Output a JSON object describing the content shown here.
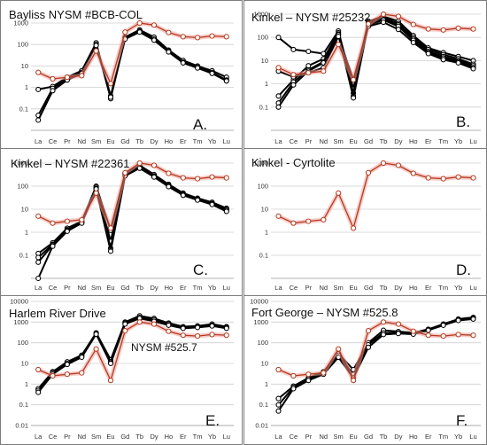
{
  "figure": {
    "colors": {
      "black_series": "#000000",
      "red_series": "#b33a1e",
      "red_glow": "#f2a09a",
      "gold_glow": "#f0c070",
      "grid": "#cfcfcf",
      "frame": "#7d7d7d"
    }
  },
  "chart_data": [
    {
      "type": "line",
      "title": "Bayliss NYSM #BCB-COL",
      "subtitle": "",
      "panel_label": "A.",
      "x": [
        "La",
        "Ce",
        "Pr",
        "Nd",
        "Sm",
        "Eu",
        "Gd",
        "Tb",
        "Dy",
        "Ho",
        "Er",
        "Tm",
        "Yb",
        "Lu"
      ],
      "y_ticks": [
        "1000",
        "100",
        "10",
        "1",
        "0.1"
      ],
      "y_scale": "log",
      "ylim": [
        0.01,
        1000
      ],
      "grid": true,
      "series": [
        {
          "color": "black",
          "values": [
            0.8,
            1.1,
            3,
            6,
            120,
            0.3,
            220,
            480,
            220,
            55,
            18,
            10,
            6,
            3
          ]
        },
        {
          "color": "black",
          "values": [
            0.05,
            0.9,
            2.5,
            5,
            100,
            0.4,
            200,
            420,
            180,
            50,
            15,
            9,
            5,
            2.2
          ]
        },
        {
          "color": "black",
          "values": [
            0.03,
            0.7,
            2.2,
            4.5,
            90,
            0.35,
            180,
            380,
            160,
            45,
            14,
            8,
            4.5,
            2
          ]
        },
        {
          "color": "red",
          "values": [
            5,
            2.5,
            3,
            3.5,
            50,
            1.5,
            380,
            1000,
            800,
            360,
            230,
            210,
            250,
            230
          ]
        }
      ]
    },
    {
      "type": "line",
      "title": "Kinkel – NYSM #25232",
      "subtitle": "",
      "panel_label": "B.",
      "x": [
        "La",
        "Ce",
        "Pr",
        "Nd",
        "Sm",
        "Eu",
        "Gd",
        "Tb",
        "Dy",
        "Ho",
        "Er",
        "Tm",
        "Yb",
        "Lu"
      ],
      "y_ticks": [
        "1000",
        "100",
        "10",
        "1",
        "0.1"
      ],
      "y_scale": "log",
      "ylim": [
        0.01,
        1000
      ],
      "grid": true,
      "series": [
        {
          "color": "black",
          "values": [
            100,
            30,
            25,
            20,
            190,
            0.6,
            500,
            800,
            500,
            120,
            35,
            22,
            15,
            10
          ]
        },
        {
          "color": "black",
          "values": [
            0.3,
            1.5,
            6,
            12,
            160,
            0.4,
            480,
            700,
            400,
            100,
            30,
            18,
            12,
            7
          ]
        },
        {
          "color": "black",
          "values": [
            0.15,
            1.2,
            4,
            9,
            140,
            0.3,
            400,
            600,
            350,
            85,
            25,
            15,
            10,
            6
          ]
        },
        {
          "color": "black",
          "values": [
            0.1,
            0.9,
            3.5,
            8,
            130,
            0.25,
            350,
            560,
            300,
            75,
            22,
            13,
            9,
            5
          ]
        },
        {
          "color": "black",
          "values": [
            3.5,
            2,
            3,
            5,
            110,
            1.5,
            300,
            450,
            220,
            60,
            20,
            11,
            8,
            4.5
          ]
        },
        {
          "color": "red",
          "values": [
            5,
            2.5,
            3,
            3.5,
            50,
            1.5,
            380,
            1000,
            800,
            360,
            230,
            210,
            250,
            230
          ]
        }
      ]
    },
    {
      "type": "line",
      "title": "Kinkel – NYSM #22361",
      "subtitle": "",
      "panel_label": "C.",
      "x": [
        "La",
        "Ce",
        "Pr",
        "Nd",
        "Sm",
        "Eu",
        "Gd",
        "Tb",
        "Dy",
        "Ho",
        "Er",
        "Tm",
        "Yb",
        "Lu"
      ],
      "y_ticks": [
        "1000",
        "100",
        "10",
        "1",
        "0.1"
      ],
      "y_scale": "log",
      "ylim": [
        0.01,
        1000
      ],
      "grid": true,
      "series": [
        {
          "color": "black",
          "values": [
            0.12,
            0.35,
            1.5,
            3,
            100,
            1.2,
            350,
            800,
            320,
            120,
            50,
            30,
            20,
            11
          ]
        },
        {
          "color": "black",
          "values": [
            0.08,
            0.3,
            1.3,
            2.8,
            90,
            0.4,
            320,
            700,
            280,
            110,
            45,
            28,
            18,
            10
          ]
        },
        {
          "color": "black",
          "values": [
            0.05,
            0.28,
            1.2,
            2.6,
            80,
            0.2,
            300,
            650,
            260,
            100,
            42,
            26,
            17,
            9
          ]
        },
        {
          "color": "black",
          "values": [
            0.01,
            0.25,
            1.1,
            2.5,
            75,
            0.15,
            280,
            600,
            250,
            95,
            40,
            25,
            16,
            8
          ]
        },
        {
          "color": "red",
          "values": [
            5,
            2.5,
            3,
            3.5,
            50,
            1.5,
            380,
            1000,
            800,
            360,
            230,
            210,
            250,
            230
          ]
        }
      ]
    },
    {
      "type": "line",
      "title": "Kinkel - Cyrtolite",
      "subtitle": "",
      "panel_label": "D.",
      "x": [
        "La",
        "Ce",
        "Pr",
        "Nd",
        "Sm",
        "Eu",
        "Gd",
        "Tb",
        "Dy",
        "Ho",
        "Er",
        "Tm",
        "Yb",
        "Lu"
      ],
      "y_ticks": [
        "1000",
        "100",
        "10",
        "1",
        "0.1"
      ],
      "y_scale": "log",
      "ylim": [
        0.01,
        1000
      ],
      "grid": true,
      "series": [
        {
          "color": "red",
          "values": [
            5,
            2.5,
            3,
            3.5,
            50,
            1.5,
            380,
            1000,
            800,
            360,
            230,
            210,
            250,
            230
          ]
        }
      ]
    },
    {
      "type": "line",
      "title": "Harlem River Drive",
      "subtitle": "NYSM #525.7",
      "panel_label": "E.",
      "x": [
        "La",
        "Ce",
        "Pr",
        "Nd",
        "Sm",
        "Eu",
        "Gd",
        "Tb",
        "Dy",
        "Ho",
        "Er",
        "Tm",
        "Yb",
        "Lu"
      ],
      "y_ticks": [
        "10000",
        "1000",
        "100",
        "10",
        "1",
        "0.1",
        "0.01"
      ],
      "y_scale": "log",
      "ylim": [
        0.01,
        10000
      ],
      "grid": true,
      "series": [
        {
          "color": "black",
          "values": [
            0.6,
            4,
            12,
            25,
            300,
            15,
            1000,
            2000,
            1500,
            900,
            600,
            650,
            800,
            600
          ]
        },
        {
          "color": "black",
          "values": [
            0.5,
            3.5,
            10,
            22,
            280,
            12,
            900,
            1700,
            1300,
            800,
            550,
            600,
            700,
            550
          ]
        },
        {
          "color": "black",
          "values": [
            0.4,
            3,
            9,
            20,
            260,
            10,
            800,
            1500,
            1100,
            700,
            500,
            550,
            650,
            500
          ]
        },
        {
          "color": "red",
          "values": [
            5,
            2.5,
            3,
            3.5,
            50,
            1.5,
            380,
            1000,
            800,
            360,
            230,
            210,
            250,
            230
          ]
        }
      ]
    },
    {
      "type": "line",
      "title": "Fort George – NYSM #525.8",
      "subtitle": "",
      "panel_label": "F.",
      "x": [
        "La",
        "Ce",
        "Pr",
        "Nd",
        "Sm",
        "Eu",
        "Gd",
        "Tb",
        "Dy",
        "Ho",
        "Er",
        "Tm",
        "Yb",
        "Lu"
      ],
      "y_ticks": [
        "10000",
        "1000",
        "100",
        "10",
        "1",
        "0.1",
        "0.01"
      ],
      "y_scale": "log",
      "ylim": [
        0.01,
        10000
      ],
      "grid": true,
      "series": [
        {
          "color": "black",
          "values": [
            0.2,
            0.8,
            2,
            4,
            30,
            5,
            100,
            400,
            350,
            300,
            450,
            800,
            1400,
            1700
          ]
        },
        {
          "color": "black",
          "values": [
            0.1,
            0.7,
            1.8,
            3.5,
            25,
            3,
            80,
            300,
            300,
            280,
            420,
            750,
            1300,
            1500
          ]
        },
        {
          "color": "black",
          "values": [
            0.05,
            0.6,
            1.5,
            3,
            20,
            2,
            60,
            250,
            280,
            260,
            400,
            700,
            1200,
            1400
          ]
        },
        {
          "color": "red",
          "values": [
            5,
            2.5,
            3,
            3.5,
            50,
            1.5,
            380,
            1000,
            800,
            360,
            230,
            210,
            250,
            230
          ]
        }
      ]
    }
  ]
}
